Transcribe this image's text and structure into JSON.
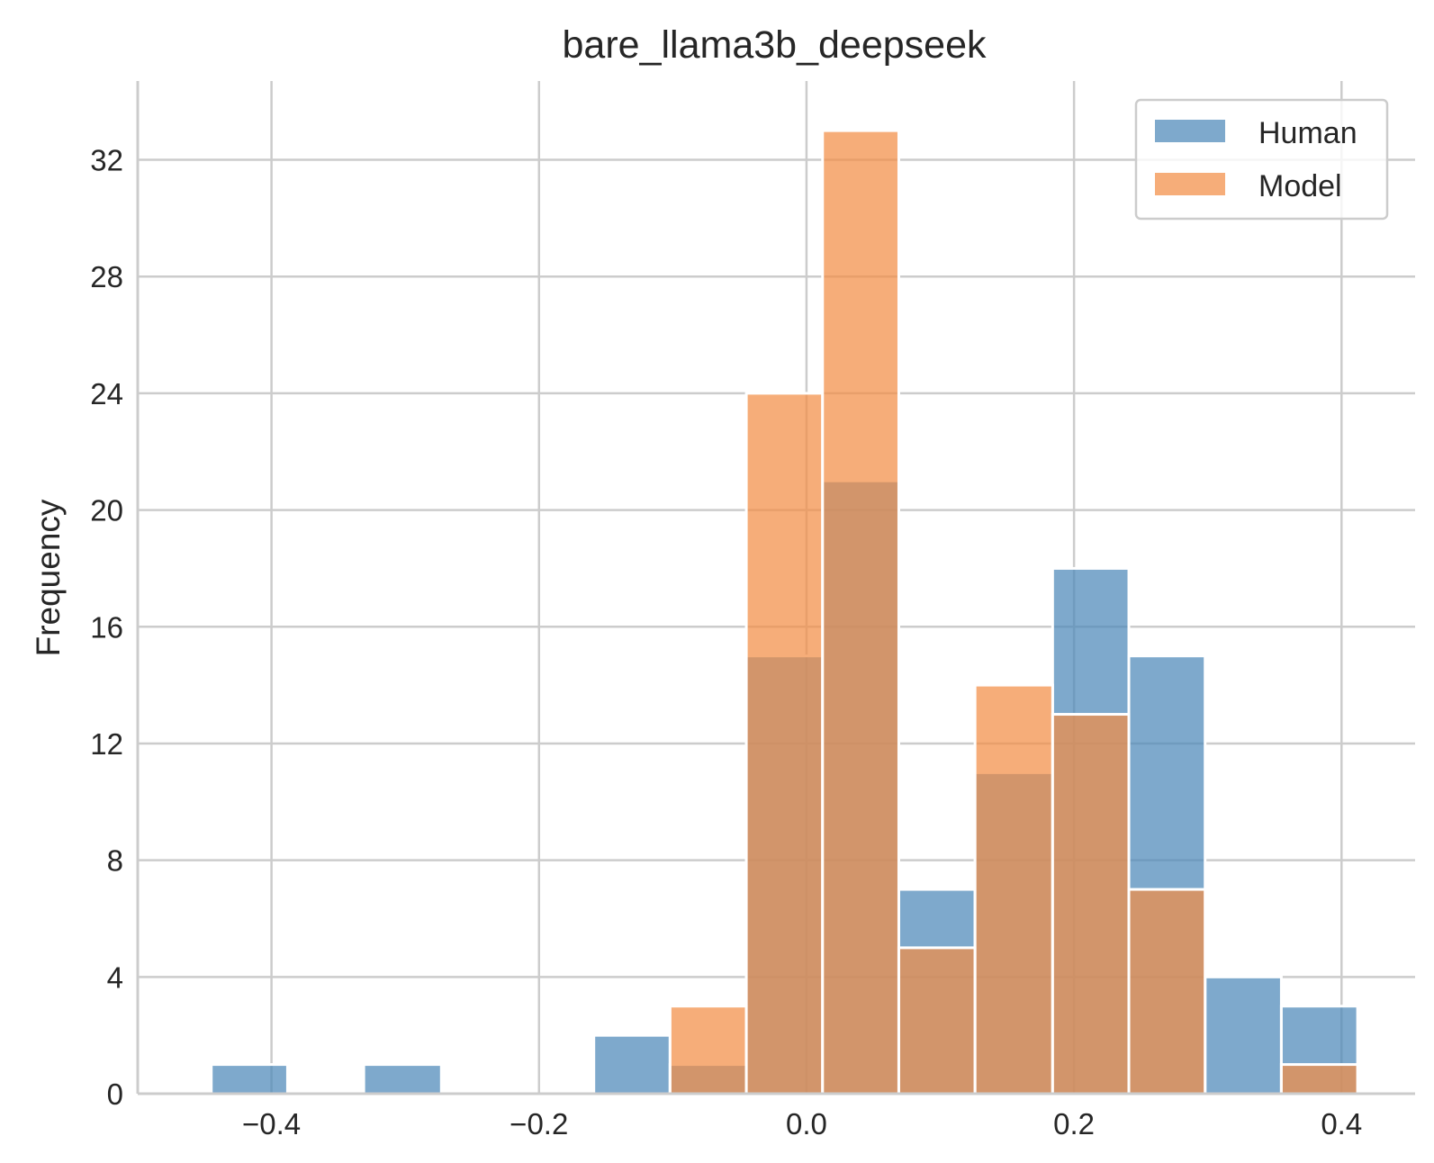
{
  "chart_data": {
    "type": "bar",
    "title": "bare_llama3b_deepseek",
    "xlabel": "",
    "ylabel": "Frequency",
    "xlim": [
      -0.5,
      0.455
    ],
    "ylim": [
      0,
      34.7
    ],
    "x_ticks": [
      -0.4,
      -0.2,
      0.0,
      0.2,
      0.4
    ],
    "x_tick_labels": [
      "−0.4",
      "−0.2",
      "0.0",
      "0.2",
      "0.4"
    ],
    "y_ticks": [
      0,
      4,
      8,
      12,
      16,
      20,
      24,
      28,
      32
    ],
    "y_tick_labels": [
      "0",
      "4",
      "8",
      "12",
      "16",
      "20",
      "24",
      "28",
      "32"
    ],
    "bin_edges": [
      -0.445,
      -0.388,
      -0.331,
      -0.273,
      -0.216,
      -0.159,
      -0.102,
      -0.045,
      0.012,
      0.069,
      0.126,
      0.184,
      0.241,
      0.298,
      0.355,
      0.412
    ],
    "grid": true,
    "legend_position": "top-right",
    "series": [
      {
        "name": "Human",
        "color": "#4c88b8",
        "values": [
          1,
          0,
          1,
          0,
          0,
          2,
          1,
          15,
          21,
          7,
          11,
          18,
          15,
          4,
          3
        ]
      },
      {
        "name": "Model",
        "color": "#f28e45",
        "values": [
          0,
          0,
          0,
          0,
          0,
          0,
          3,
          24,
          33,
          5,
          14,
          13,
          7,
          0,
          1
        ]
      }
    ]
  }
}
